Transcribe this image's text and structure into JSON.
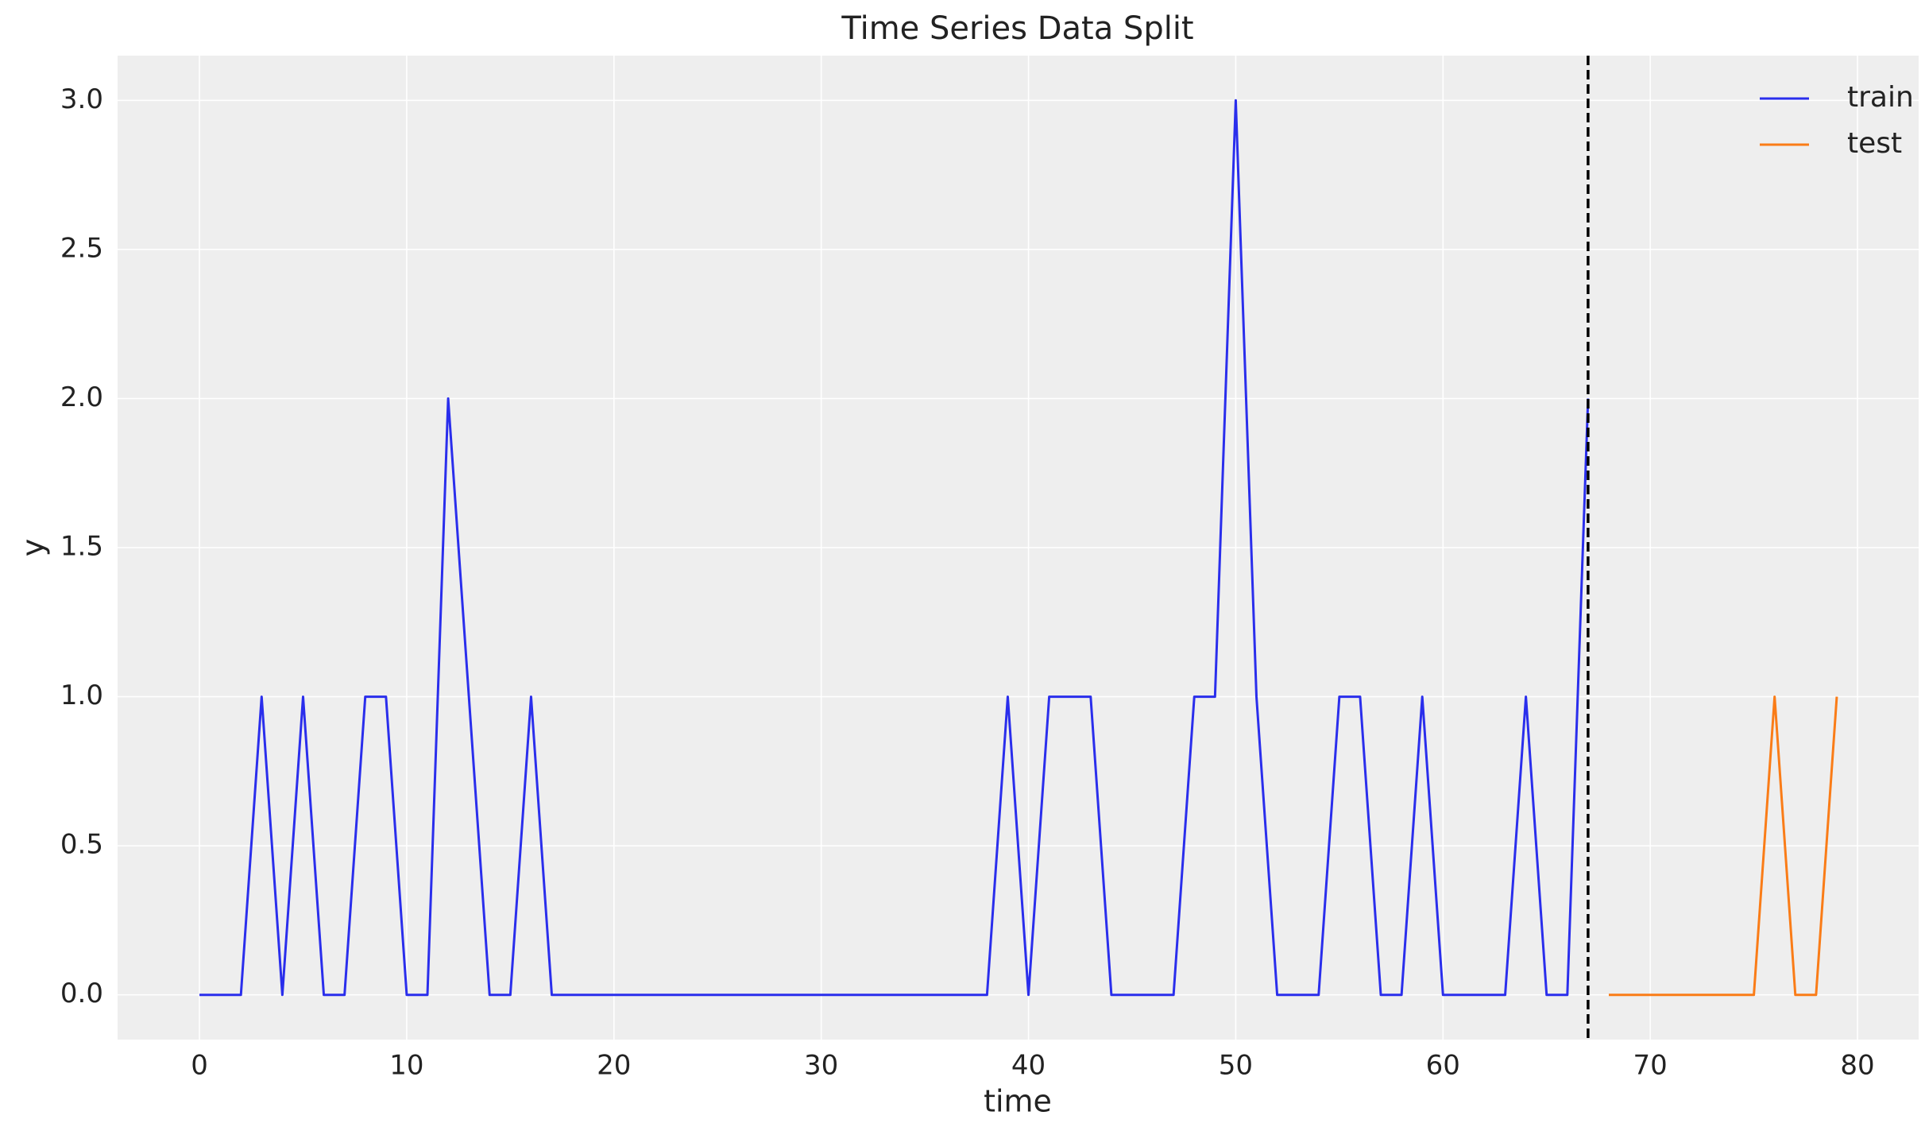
{
  "chart_data": {
    "type": "line",
    "title": "Time Series Data Split",
    "x_label": "time",
    "y_label": "y",
    "xlim": [
      -3.95,
      82.95
    ],
    "ylim": [
      -0.15,
      3.15
    ],
    "xticks": [
      0,
      10,
      20,
      30,
      40,
      50,
      60,
      70,
      80
    ],
    "yticks": [
      {
        "value": 0,
        "label": "0.0"
      },
      {
        "value": 0.5,
        "label": "0.5"
      },
      {
        "value": 1,
        "label": "1.0"
      },
      {
        "value": 1.5,
        "label": "1.5"
      },
      {
        "value": 2,
        "label": "2.0"
      },
      {
        "value": 2.5,
        "label": "2.5"
      },
      {
        "value": 3,
        "label": "3.0"
      }
    ],
    "grid": true,
    "legend": "upper right",
    "vline": 67,
    "vline_color": "#000000",
    "series": [
      {
        "name": "train",
        "color": "#2a2eec",
        "x": [
          0,
          1,
          2,
          3,
          4,
          5,
          6,
          7,
          8,
          9,
          10,
          11,
          12,
          13,
          14,
          15,
          16,
          17,
          18,
          19,
          20,
          21,
          22,
          23,
          24,
          25,
          26,
          27,
          28,
          29,
          30,
          31,
          32,
          33,
          34,
          35,
          36,
          37,
          38,
          39,
          40,
          41,
          42,
          43,
          44,
          45,
          46,
          47,
          48,
          49,
          50,
          51,
          52,
          53,
          54,
          55,
          56,
          57,
          58,
          59,
          60,
          61,
          62,
          63,
          64,
          65,
          66,
          67
        ],
        "values": [
          0,
          0,
          0,
          1,
          0,
          1,
          0,
          0,
          1,
          1,
          0,
          0,
          2,
          1,
          0,
          0,
          1,
          0,
          0,
          0,
          0,
          0,
          0,
          0,
          0,
          0,
          0,
          0,
          0,
          0,
          0,
          0,
          0,
          0,
          0,
          0,
          0,
          0,
          0,
          1,
          0,
          1,
          1,
          1,
          0,
          0,
          0,
          0,
          1,
          1,
          3,
          1,
          0,
          0,
          0,
          1,
          1,
          0,
          0,
          1,
          0,
          0,
          0,
          0,
          1,
          0,
          0,
          2
        ]
      },
      {
        "name": "test",
        "color": "#fa7c17",
        "x": [
          68,
          69,
          70,
          71,
          72,
          73,
          74,
          75,
          76,
          77,
          78,
          79
        ],
        "values": [
          0,
          0,
          0,
          0,
          0,
          0,
          0,
          0,
          1,
          0,
          0,
          1
        ]
      }
    ]
  }
}
